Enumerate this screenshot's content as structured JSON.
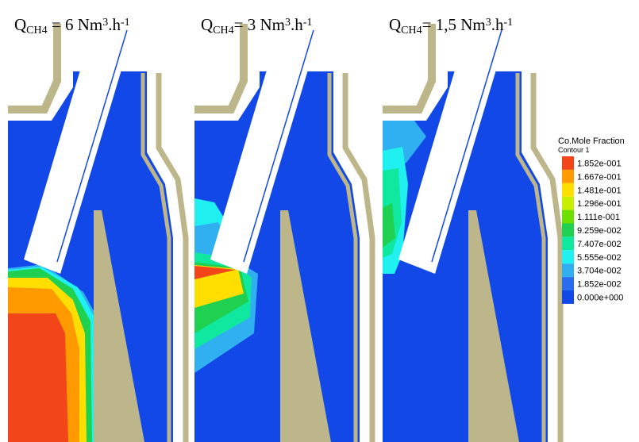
{
  "panels": [
    {
      "title": [
        {
          "text": "Q",
          "script": "normal"
        },
        {
          "text": "CH4",
          "script": "sub"
        },
        {
          "text": " = 6 Nm",
          "script": "normal"
        },
        {
          "text": "3",
          "script": "sup"
        },
        {
          "text": ".h",
          "script": "normal"
        },
        {
          "text": "-1",
          "script": "sup"
        }
      ]
    },
    {
      "title": [
        {
          "text": "Q",
          "script": "normal"
        },
        {
          "text": "CH4",
          "script": "sub"
        },
        {
          "text": "= 3 Nm",
          "script": "normal"
        },
        {
          "text": "3",
          "script": "sup"
        },
        {
          "text": ".h",
          "script": "normal"
        },
        {
          "text": "-1",
          "script": "sup"
        }
      ]
    },
    {
      "title": [
        {
          "text": "Q",
          "script": "normal"
        },
        {
          "text": "CH4",
          "script": "sub"
        },
        {
          "text": "= 1,5 Nm",
          "script": "normal"
        },
        {
          "text": "3",
          "script": "sup"
        },
        {
          "text": ".h",
          "script": "normal"
        },
        {
          "text": "-1",
          "script": "sup"
        }
      ]
    }
  ],
  "legend": {
    "title": "Co.Mole Fraction",
    "subtitle": "Contour 1",
    "levels": [
      {
        "label": "1.852e-001",
        "color": "#f2461a"
      },
      {
        "label": "1.667e-001",
        "color": "#ff9a00"
      },
      {
        "label": "1.481e-001",
        "color": "#ffde00"
      },
      {
        "label": "1.296e-001",
        "color": "#c8ee00"
      },
      {
        "label": "1.111e-001",
        "color": "#6ee000"
      },
      {
        "label": "9.259e-002",
        "color": "#20d050"
      },
      {
        "label": "7.407e-002",
        "color": "#10e8a0"
      },
      {
        "label": "5.555e-002",
        "color": "#20f0f0"
      },
      {
        "label": "3.704e-002",
        "color": "#30b0f0"
      },
      {
        "label": "1.852e-002",
        "color": "#2a6cf0"
      },
      {
        "label": "0.000e+000",
        "color": "#1248e8"
      }
    ]
  }
}
